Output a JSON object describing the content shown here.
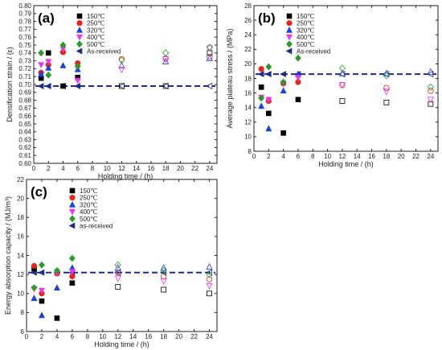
{
  "chart_data": [
    {
      "type": "scatter",
      "panel_label": "(a)",
      "xlabel": "Holding time / (h)",
      "ylabel": "Densification strain / (ε)",
      "xlim": [
        0,
        25
      ],
      "ylim": [
        0.6,
        0.8
      ],
      "xticks": [
        0,
        2,
        4,
        6,
        8,
        10,
        12,
        14,
        16,
        18,
        20,
        22,
        24
      ],
      "yticks": [
        0.6,
        0.61,
        0.62,
        0.63,
        0.64,
        0.65,
        0.66,
        0.67,
        0.68,
        0.69,
        0.7,
        0.71,
        0.72,
        0.73,
        0.74,
        0.75,
        0.76,
        0.77,
        0.78,
        0.79,
        0.8
      ],
      "ytick_labels": [
        "0.60",
        "0.61",
        "0.62",
        "0.63",
        "0.64",
        "0.65",
        "0.66",
        "0.67",
        "0.68",
        "0.69",
        "0.70",
        "0.71",
        "0.72",
        "0.73",
        "0.74",
        "0.75",
        "0.76",
        "0.77",
        "0.78",
        "0.79",
        "0.80"
      ],
      "legend_position": "top-center",
      "reference": {
        "name": "As-received",
        "y": 0.698,
        "x": [
          1,
          2,
          4,
          6,
          12,
          18,
          24
        ]
      },
      "series": [
        {
          "name": "150℃",
          "marker": "square",
          "color": "#000000",
          "x": [
            1,
            2,
            4,
            6,
            12,
            18,
            24
          ],
          "y": [
            0.708,
            0.74,
            0.698,
            0.709,
            0.698,
            0.698,
            0.74
          ],
          "hollow_from": 4
        },
        {
          "name": "250℃",
          "marker": "circle",
          "color": "#e8231f",
          "x": [
            1,
            2,
            4,
            6,
            12,
            18,
            24
          ],
          "y": [
            0.715,
            0.725,
            0.741,
            0.727,
            0.732,
            0.733,
            0.735
          ],
          "hollow_from": 4
        },
        {
          "name": "320℃",
          "marker": "triangle-up",
          "color": "#1a3ee6",
          "x": [
            1,
            2,
            4,
            6,
            12,
            18,
            24
          ],
          "y": [
            0.713,
            0.721,
            0.724,
            0.719,
            0.724,
            0.729,
            0.733
          ],
          "hollow_from": 4
        },
        {
          "name": "400℃",
          "marker": "triangle-down",
          "color": "#ee35ee",
          "x": [
            1,
            2,
            4,
            6,
            12,
            18,
            24
          ],
          "y": [
            0.725,
            0.729,
            0.745,
            0.705,
            0.719,
            0.732,
            0.746
          ],
          "hollow_from": 4
        },
        {
          "name": "500℃",
          "marker": "diamond",
          "color": "#2a9a2a",
          "x": [
            1,
            2,
            4,
            6,
            12,
            18,
            24
          ],
          "y": [
            0.74,
            0.712,
            0.75,
            0.723,
            0.731,
            0.74,
            0.747
          ],
          "hollow_from": 4
        }
      ]
    },
    {
      "type": "scatter",
      "panel_label": "(b)",
      "xlabel": "Holding time / (h)",
      "ylabel": "Average plateau stress / (MPa)",
      "xlim": [
        0,
        25
      ],
      "ylim": [
        8,
        28
      ],
      "xticks": [
        0,
        2,
        4,
        6,
        8,
        10,
        12,
        14,
        16,
        18,
        20,
        22,
        24
      ],
      "yticks": [
        8,
        10,
        12,
        14,
        16,
        18,
        20,
        22,
        24,
        26,
        28
      ],
      "ytick_labels": [
        "8",
        "10",
        "12",
        "14",
        "16",
        "18",
        "20",
        "22",
        "24",
        "26",
        "28"
      ],
      "legend_position": "top-center",
      "reference": {
        "name": "As-received",
        "y": 18.6,
        "x": [
          1,
          2,
          4,
          6,
          12,
          18,
          24
        ]
      },
      "series": [
        {
          "name": "150℃",
          "marker": "square",
          "color": "#000000",
          "x": [
            1,
            2,
            4,
            6,
            12,
            18,
            24
          ],
          "y": [
            16.8,
            13.2,
            10.5,
            15.1,
            14.9,
            14.7,
            14.5
          ],
          "hollow_from": 4
        },
        {
          "name": "250℃",
          "marker": "circle",
          "color": "#e8231f",
          "x": [
            1,
            2,
            4,
            6,
            12,
            18,
            24
          ],
          "y": [
            19.3,
            14.9,
            17.3,
            17.5,
            17.1,
            16.7,
            16.3
          ],
          "hollow_from": 4
        },
        {
          "name": "320℃",
          "marker": "triangle-up",
          "color": "#1a3ee6",
          "x": [
            1,
            2,
            4,
            6,
            12,
            18,
            24
          ],
          "y": [
            14.2,
            11.1,
            16.3,
            18.6,
            18.7,
            18.7,
            18.9
          ],
          "hollow_from": 4
        },
        {
          "name": "400℃",
          "marker": "triangle-down",
          "color": "#ee35ee",
          "x": [
            1,
            2,
            4,
            6,
            12,
            18,
            24
          ],
          "y": [
            15.4,
            15.1,
            17.3,
            18.1,
            17.1,
            16.2,
            15.1
          ],
          "hollow_from": 4
        },
        {
          "name": "500℃",
          "marker": "diamond",
          "color": "#2a9a2a",
          "x": [
            1,
            2,
            4,
            6,
            12,
            18,
            24
          ],
          "y": [
            15.3,
            19.6,
            17.5,
            20.8,
            19.4,
            18.4,
            16.8
          ],
          "hollow_from": 4
        }
      ]
    },
    {
      "type": "scatter",
      "panel_label": "(c)",
      "xlabel": "Holding time / (h)",
      "ylabel": "Energy absorption capacity / (MJ/m³)",
      "xlim": [
        0,
        25
      ],
      "ylim": [
        6,
        22
      ],
      "xticks": [
        0,
        2,
        4,
        6,
        8,
        10,
        12,
        14,
        16,
        18,
        20,
        22,
        24
      ],
      "yticks": [
        6,
        8,
        10,
        12,
        14,
        16,
        18,
        20,
        22
      ],
      "ytick_labels": [
        "6",
        "8",
        "10",
        "12",
        "14",
        "16",
        "18",
        "20",
        "22"
      ],
      "legend_position": "top-center",
      "reference": {
        "name": "as-received",
        "y": 12.2,
        "x": [
          1,
          2,
          4,
          6,
          12,
          18,
          24
        ]
      },
      "series": [
        {
          "name": "150℃",
          "marker": "square",
          "color": "#000000",
          "x": [
            1,
            2,
            4,
            6,
            12,
            18,
            24
          ],
          "y": [
            12.6,
            9.2,
            7.4,
            11.1,
            10.7,
            10.4,
            10.0
          ],
          "hollow_from": 4
        },
        {
          "name": "250℃",
          "marker": "circle",
          "color": "#e8231f",
          "x": [
            1,
            2,
            4,
            6,
            12,
            18,
            24
          ],
          "y": [
            12.9,
            10.0,
            12.1,
            11.8,
            12.2,
            11.8,
            11.5
          ],
          "hollow_from": 4
        },
        {
          "name": "320℃",
          "marker": "triangle-up",
          "color": "#1a3ee6",
          "x": [
            1,
            2,
            4,
            6,
            12,
            18,
            24
          ],
          "y": [
            9.5,
            7.7,
            10.6,
            12.7,
            12.7,
            12.7,
            12.8
          ],
          "hollow_from": 4
        },
        {
          "name": "400℃",
          "marker": "triangle-down",
          "color": "#ee35ee",
          "x": [
            1,
            2,
            4,
            6,
            12,
            18,
            24
          ],
          "y": [
            10.5,
            10.3,
            12.2,
            12.3,
            11.6,
            11.3,
            10.8
          ],
          "hollow_from": 4
        },
        {
          "name": "500℃",
          "marker": "diamond",
          "color": "#2a9a2a",
          "x": [
            1,
            2,
            4,
            6,
            12,
            18,
            24
          ],
          "y": [
            10.6,
            13.0,
            12.4,
            13.7,
            13.0,
            12.4,
            12.0
          ],
          "hollow_from": 4
        }
      ]
    }
  ]
}
